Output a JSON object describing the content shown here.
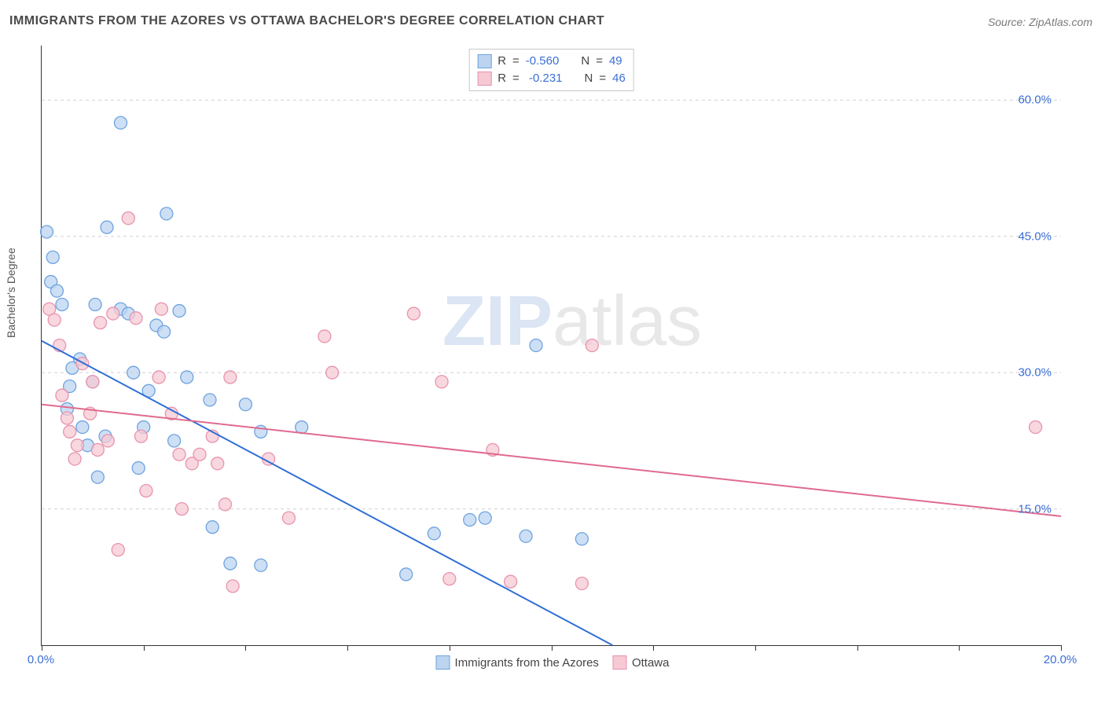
{
  "title": "IMMIGRANTS FROM THE AZORES VS OTTAWA BACHELOR'S DEGREE CORRELATION CHART",
  "source_label": "Source: ZipAtlas.com",
  "ylabel": "Bachelor's Degree",
  "watermark_bold": "ZIP",
  "watermark_rest": "atlas",
  "chart": {
    "type": "scatter",
    "background_color": "#ffffff",
    "grid_color": "#d0d0d0",
    "axis_color": "#333333",
    "tick_label_color": "#3b6fd6",
    "xlim": [
      0,
      20
    ],
    "ylim": [
      0,
      66
    ],
    "yticks": [
      15,
      30,
      45,
      60
    ],
    "ytick_labels": [
      "15.0%",
      "30.0%",
      "45.0%",
      "60.0%"
    ],
    "xtick_positions": [
      0,
      2,
      4,
      6,
      8,
      10,
      12,
      14,
      16,
      18,
      20
    ],
    "xtick_labels_shown": {
      "0": "0.0%",
      "20": "20.0%"
    },
    "marker_radius": 8,
    "marker_stroke_width": 1.3,
    "line_width": 2
  },
  "series": [
    {
      "name": "Immigrants from the Azores",
      "fill": "#bcd4f0",
      "stroke": "#6fa3e0",
      "line_color": "#2f6fd6",
      "R": "-0.560",
      "N": "49",
      "trend": {
        "x1": 0,
        "y1": 33.5,
        "x2": 11.2,
        "y2": 0
      },
      "points": [
        [
          0.18,
          40.0
        ],
        [
          0.1,
          45.5
        ],
        [
          0.22,
          42.7
        ],
        [
          0.3,
          39.0
        ],
        [
          0.4,
          37.5
        ],
        [
          0.55,
          28.5
        ],
        [
          0.6,
          30.5
        ],
        [
          0.5,
          26.0
        ],
        [
          0.75,
          31.5
        ],
        [
          0.8,
          24.0
        ],
        [
          0.9,
          22.0
        ],
        [
          1.0,
          29.0
        ],
        [
          1.05,
          37.5
        ],
        [
          1.1,
          18.5
        ],
        [
          1.25,
          23.0
        ],
        [
          1.28,
          46.0
        ],
        [
          1.55,
          57.5
        ],
        [
          1.55,
          37.0
        ],
        [
          1.7,
          36.5
        ],
        [
          1.8,
          30.0
        ],
        [
          1.9,
          19.5
        ],
        [
          2.0,
          24.0
        ],
        [
          2.1,
          28.0
        ],
        [
          2.25,
          35.2
        ],
        [
          2.4,
          34.5
        ],
        [
          2.45,
          47.5
        ],
        [
          2.6,
          22.5
        ],
        [
          2.7,
          36.8
        ],
        [
          2.85,
          29.5
        ],
        [
          3.3,
          27.0
        ],
        [
          3.35,
          13.0
        ],
        [
          3.7,
          9.0
        ],
        [
          4.0,
          26.5
        ],
        [
          4.3,
          23.5
        ],
        [
          4.3,
          8.8
        ],
        [
          5.1,
          24.0
        ],
        [
          7.15,
          7.8
        ],
        [
          7.7,
          12.3
        ],
        [
          8.4,
          13.8
        ],
        [
          8.7,
          14.0
        ],
        [
          9.5,
          12.0
        ],
        [
          9.7,
          33.0
        ],
        [
          10.6,
          11.7
        ]
      ]
    },
    {
      "name": "Ottawa",
      "fill": "#f6c9d4",
      "stroke": "#e893ad",
      "line_color": "#e06a8e",
      "R": "-0.231",
      "N": "46",
      "trend": {
        "x1": 0,
        "y1": 26.5,
        "x2": 20,
        "y2": 14.2
      },
      "points": [
        [
          0.15,
          37.0
        ],
        [
          0.25,
          35.8
        ],
        [
          0.35,
          33.0
        ],
        [
          0.4,
          27.5
        ],
        [
          0.5,
          25.0
        ],
        [
          0.55,
          23.5
        ],
        [
          0.65,
          20.5
        ],
        [
          0.7,
          22.0
        ],
        [
          0.8,
          31.0
        ],
        [
          0.95,
          25.5
        ],
        [
          1.0,
          29.0
        ],
        [
          1.1,
          21.5
        ],
        [
          1.15,
          35.5
        ],
        [
          1.3,
          22.5
        ],
        [
          1.4,
          36.5
        ],
        [
          1.5,
          10.5
        ],
        [
          1.7,
          47.0
        ],
        [
          1.85,
          36.0
        ],
        [
          1.95,
          23.0
        ],
        [
          2.05,
          17.0
        ],
        [
          2.3,
          29.5
        ],
        [
          2.35,
          37.0
        ],
        [
          2.55,
          25.5
        ],
        [
          2.7,
          21.0
        ],
        [
          2.75,
          15.0
        ],
        [
          2.95,
          20.0
        ],
        [
          3.1,
          21.0
        ],
        [
          3.35,
          23.0
        ],
        [
          3.45,
          20.0
        ],
        [
          3.6,
          15.5
        ],
        [
          3.7,
          29.5
        ],
        [
          3.75,
          6.5
        ],
        [
          4.45,
          20.5
        ],
        [
          4.85,
          14.0
        ],
        [
          5.55,
          34.0
        ],
        [
          5.7,
          30.0
        ],
        [
          7.3,
          36.5
        ],
        [
          7.85,
          29.0
        ],
        [
          8.0,
          7.3
        ],
        [
          8.85,
          21.5
        ],
        [
          9.2,
          7.0
        ],
        [
          10.6,
          6.8
        ],
        [
          10.8,
          33.0
        ],
        [
          19.5,
          24.0
        ]
      ]
    }
  ],
  "bottom_legend_prefix": "",
  "stat_labels": {
    "R": "R",
    "N": "N",
    "eq": "="
  }
}
